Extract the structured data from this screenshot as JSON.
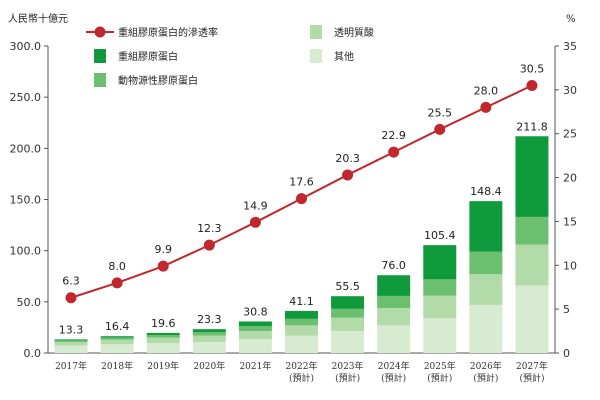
{
  "chart_data": {
    "type": "bar",
    "unit_left": "人民幣十億元",
    "unit_right": "%",
    "categories": [
      {
        "year": "2017年",
        "note": ""
      },
      {
        "year": "2018年",
        "note": ""
      },
      {
        "year": "2019年",
        "note": ""
      },
      {
        "year": "2020年",
        "note": ""
      },
      {
        "year": "2021年",
        "note": ""
      },
      {
        "year": "2022年",
        "note": "(預計)"
      },
      {
        "year": "2023年",
        "note": "(預計)"
      },
      {
        "year": "2024年",
        "note": "(預計)"
      },
      {
        "year": "2025年",
        "note": "(預計)"
      },
      {
        "year": "2026年",
        "note": "(預計)"
      },
      {
        "year": "2027年",
        "note": "(預計)"
      }
    ],
    "totals": [
      13.3,
      16.4,
      19.6,
      23.3,
      30.8,
      41.1,
      55.5,
      76.0,
      105.4,
      148.4,
      211.8
    ],
    "total_labels": [
      "13.3",
      "16.4",
      "19.6",
      "23.3",
      "30.8",
      "41.1",
      "55.5",
      "76.0",
      "105.4",
      "148.4",
      "211.8"
    ],
    "stack_series": [
      {
        "name": "其他",
        "color": "#d6ebcf",
        "values": [
          7.2,
          8.6,
          9.6,
          10.8,
          13.5,
          17.0,
          21.5,
          27.0,
          34.0,
          47.0,
          66.0
        ]
      },
      {
        "name": "透明質酸",
        "color": "#b3dba9",
        "values": [
          3.6,
          4.4,
          5.4,
          6.3,
          8.0,
          10.0,
          13.0,
          17.0,
          22.0,
          30.0,
          40.0
        ]
      },
      {
        "name": "動物源性膠原蛋白",
        "color": "#6bbf6f",
        "values": [
          1.5,
          2.0,
          2.5,
          3.2,
          4.6,
          6.4,
          8.7,
          11.8,
          16.0,
          22.0,
          27.0
        ]
      },
      {
        "name": "重組膠原蛋白",
        "color": "#0f9a3c",
        "values": [
          1.0,
          1.4,
          2.1,
          3.0,
          4.7,
          7.7,
          12.3,
          20.2,
          33.4,
          49.4,
          78.8
        ]
      }
    ],
    "line_series": {
      "name": "重組膠原蛋白的滲透率",
      "color": "#c0282d",
      "values": [
        6.3,
        8.0,
        9.9,
        12.3,
        14.9,
        17.6,
        20.3,
        22.9,
        25.5,
        28.0,
        30.5
      ],
      "labels": [
        "6.3",
        "8.0",
        "9.9",
        "12.3",
        "14.9",
        "17.6",
        "20.3",
        "22.9",
        "25.5",
        "28.0",
        "30.5"
      ]
    },
    "y_left": {
      "min": 0,
      "max": 300,
      "ticks": [
        "0.0",
        "50.0",
        "100.0",
        "150.0",
        "200.0",
        "250.0",
        "300.0"
      ]
    },
    "y_right": {
      "min": 0,
      "max": 35,
      "ticks": [
        "0",
        "5",
        "10",
        "15",
        "20",
        "25",
        "30",
        "35"
      ]
    },
    "legend": [
      {
        "label": "重組膠原蛋白的滲透率",
        "kind": "line",
        "color": "#c0282d"
      },
      {
        "label": "透明質酸",
        "kind": "box",
        "color": "#b3dba9"
      },
      {
        "label": "重組膠原蛋白",
        "kind": "box",
        "color": "#0f9a3c"
      },
      {
        "label": "其他",
        "kind": "box",
        "color": "#d6ebcf"
      },
      {
        "label": "動物源性膠原蛋白",
        "kind": "box",
        "color": "#6bbf6f"
      }
    ]
  }
}
